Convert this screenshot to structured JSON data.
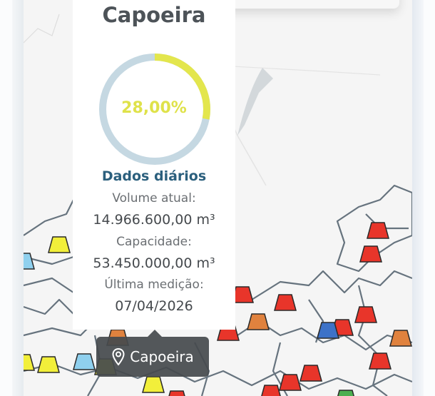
{
  "popup": {
    "title": "Capoeira",
    "percent_label": "28,00%",
    "percent_value": 28.0,
    "section_title": "Dados diários",
    "volume_label": "Volume atual:",
    "volume_value": "14.966.600,00 m³",
    "capacity_label": "Capacidade:",
    "capacity_value": "53.450.000,00 m³",
    "last_measure_label": "Última medição:",
    "last_measure_value": "07/04/2026"
  },
  "tooltip": {
    "icon": "map-pin-icon",
    "label": "Capoeira"
  },
  "colors": {
    "gauge_fill": "#e3e64d",
    "gauge_track": "#c5d8e2",
    "marker_red": "#e8352a",
    "marker_orange": "#e0823e",
    "marker_yellow": "#f2ef3a",
    "marker_lightblue": "#8fd0ee",
    "marker_blue": "#3d72c8",
    "marker_green": "#4caf50"
  }
}
